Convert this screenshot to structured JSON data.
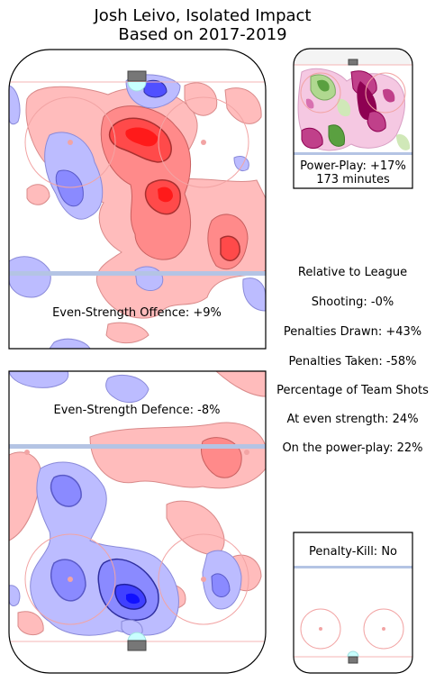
{
  "header": {
    "title_line1": "Josh Leivo, Isolated Impact",
    "title_line2": "Based on 2017-2019"
  },
  "panels": {
    "ev_offence": "Even-Strength Offence: +9%",
    "ev_defence": "Even-Strength Defence: -8%",
    "pp_line1": "Power-Play: +17%",
    "pp_line2": "173 minutes",
    "pk_label": "Penalty-Kill: No"
  },
  "stats": {
    "heading": "Relative to League",
    "shooting": "Shooting: -0%",
    "pen_drawn": "Penalties Drawn: +43%",
    "pen_taken": "Penalties Taken: -58%",
    "team_shots": "Percentage of Team Shots",
    "even_strength": "At even strength: 24%",
    "power_play": "On the power-play: 22%"
  },
  "chart_data": [
    {
      "type": "heatmap",
      "title": "Even-Strength Offence: +9%",
      "value_pct": 9,
      "colors": {
        "above": "#ff2020",
        "below": "#3030ff"
      }
    },
    {
      "type": "heatmap",
      "title": "Even-Strength Defence: -8%",
      "value_pct": -8,
      "colors": {
        "above": "#ff2020",
        "below": "#3030ff"
      }
    },
    {
      "type": "heatmap",
      "title": "Power-Play: +17%",
      "value_pct": 17,
      "minutes": 173,
      "colors": {
        "above": "#8e0152",
        "below": "#4d9221"
      }
    },
    {
      "type": "heatmap",
      "title": "Penalty-Kill: No",
      "colors": {
        "empty": "#ffffff"
      }
    }
  ]
}
